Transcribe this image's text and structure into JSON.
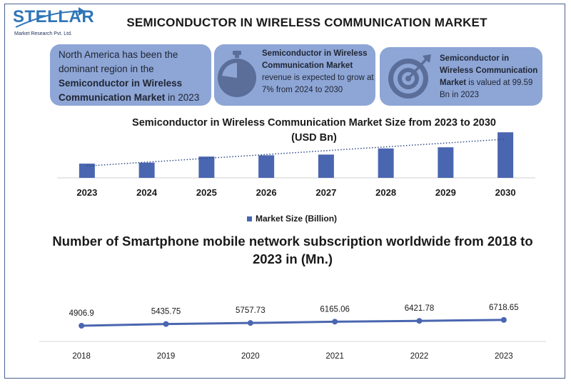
{
  "brand": {
    "name": "STELLAR",
    "subtitle": "Market Research Pvt. Ltd."
  },
  "header": {
    "title": "SEMICONDUCTOR IN WIRELESS COMMUNICATION MARKET"
  },
  "cards": [
    {
      "parts": [
        "North America has been the dominant region in the ",
        "Semiconductor in Wireless Communication Market",
        " in 2023"
      ]
    },
    {
      "icon": "stopwatch-icon",
      "parts": [
        "Semiconductor in Wireless Communication Market",
        " revenue is expected to grow at 7% from 2024 to 2030"
      ]
    },
    {
      "icon": "target-icon",
      "parts": [
        "Semiconductor in Wireless Communication Market",
        " is valued at 99.59 Bn in 2023"
      ]
    }
  ],
  "colors": {
    "card_bg": "#8ea6d6",
    "bar": "#4a66b0",
    "line": "#4a66b0",
    "frame": "#4a5f8f",
    "logo_blue": "#2f76b8"
  },
  "chart_data": [
    {
      "type": "bar",
      "title": "Semiconductor in Wireless Communication Market Size from 2023 to 2030",
      "subtitle": "(USD Bn)",
      "categories": [
        "2023",
        "2024",
        "2025",
        "2026",
        "2027",
        "2028",
        "2029",
        "2030"
      ],
      "series": [
        {
          "name": "Market Size (Billion)",
          "values": [
            99.59,
            106.6,
            149,
            158,
            163,
            206,
            214,
            319
          ]
        }
      ],
      "trendline": "dotted linear",
      "ylim": [
        0,
        330
      ],
      "legend": "bottom",
      "grid": false
    },
    {
      "type": "line",
      "title": "Number of Smartphone mobile network subscription worldwide from 2018 to 2023 in (Mn.)",
      "categories": [
        "2018",
        "2019",
        "2020",
        "2021",
        "2022",
        "2023"
      ],
      "series": [
        {
          "values": [
            4906.9,
            5435.75,
            5757.73,
            6165.06,
            6421.78,
            6718.65
          ],
          "labels": [
            "4906.9",
            "5435.75",
            "5757.73",
            "6165.06",
            "6421.78",
            "6718.65"
          ]
        }
      ],
      "ylim": [
        0,
        35000
      ],
      "markers": true,
      "grid": false
    }
  ]
}
